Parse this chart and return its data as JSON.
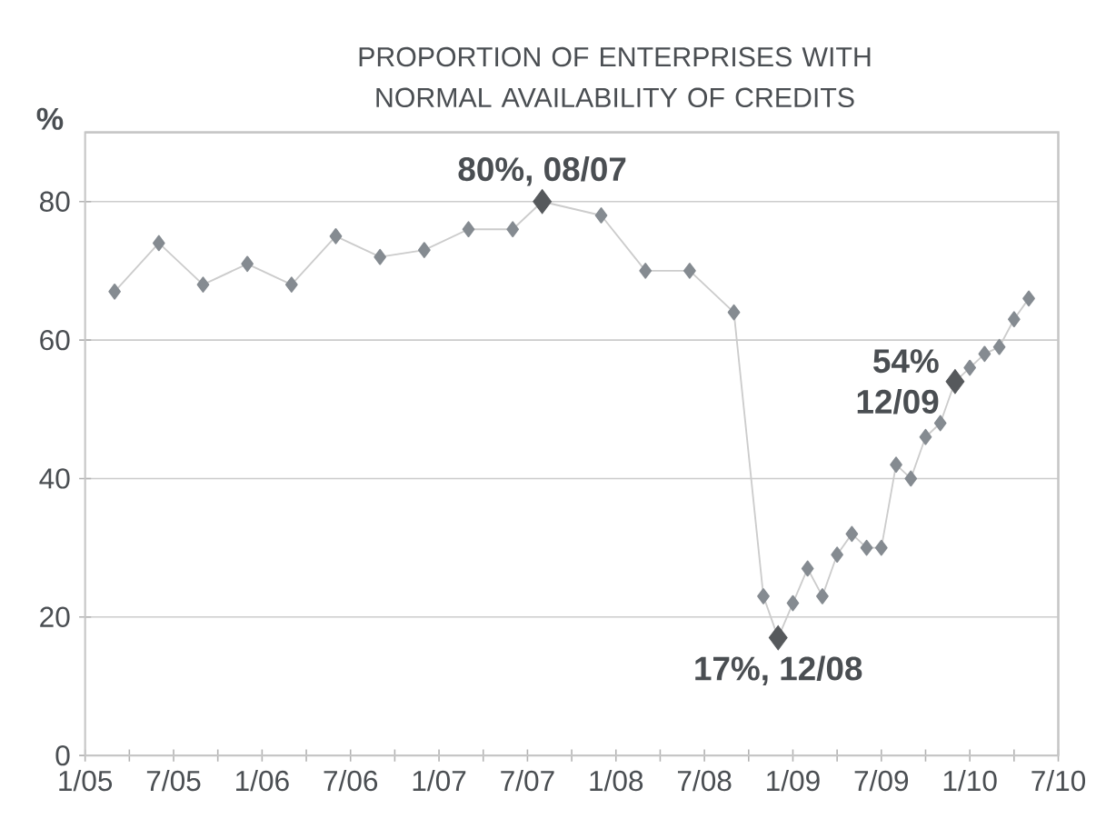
{
  "chart_data": {
    "type": "line",
    "title": "PROPORTION OF ENTERPRISES WITH NORMAL AVAILABILITY OF CREDITS",
    "ylabel": "%",
    "x": [
      "2005-03",
      "2005-06",
      "2005-09",
      "2005-12",
      "2006-03",
      "2006-06",
      "2006-09",
      "2006-12",
      "2007-03",
      "2007-06",
      "2007-08",
      "2007-12",
      "2008-03",
      "2008-06",
      "2008-09",
      "2008-11",
      "2008-12",
      "2009-01",
      "2009-02",
      "2009-03",
      "2009-04",
      "2009-05",
      "2009-06",
      "2009-07",
      "2009-08",
      "2009-09",
      "2009-10",
      "2009-11",
      "2009-12",
      "2010-01",
      "2010-02",
      "2010-03",
      "2010-04",
      "2010-05"
    ],
    "series": [
      {
        "color": "#858b91",
        "values": [
          67,
          74,
          68,
          71,
          68,
          75,
          72,
          73,
          76,
          76,
          80,
          78,
          70,
          70,
          64,
          23,
          17,
          22,
          27,
          23,
          29,
          32,
          30,
          30,
          42,
          40,
          46,
          48,
          54,
          56,
          58,
          59,
          63,
          66
        ]
      }
    ],
    "xlim": [
      "2005-01",
      "2010-07"
    ],
    "xticks": [
      {
        "value": "2005-01",
        "label": "1/05"
      },
      {
        "value": "2005-04",
        "label": null
      },
      {
        "value": "2005-07",
        "label": "7/05"
      },
      {
        "value": "2005-10",
        "label": null
      },
      {
        "value": "2006-01",
        "label": "1/06"
      },
      {
        "value": "2006-04",
        "label": null
      },
      {
        "value": "2006-07",
        "label": "7/06"
      },
      {
        "value": "2006-10",
        "label": null
      },
      {
        "value": "2007-01",
        "label": "1/07"
      },
      {
        "value": "2007-04",
        "label": null
      },
      {
        "value": "2007-07",
        "label": "7/07"
      },
      {
        "value": "2007-10",
        "label": null
      },
      {
        "value": "2008-01",
        "label": "1/08"
      },
      {
        "value": "2008-04",
        "label": null
      },
      {
        "value": "2008-07",
        "label": "7/08"
      },
      {
        "value": "2008-10",
        "label": null
      },
      {
        "value": "2009-01",
        "label": "1/09"
      },
      {
        "value": "2009-04",
        "label": null
      },
      {
        "value": "2009-07",
        "label": "7/09"
      },
      {
        "value": "2009-10",
        "label": null
      },
      {
        "value": "2010-01",
        "label": "1/10"
      },
      {
        "value": "2010-04",
        "label": null
      },
      {
        "value": "2010-07",
        "label": "7/10"
      }
    ],
    "ylim": [
      0,
      90
    ],
    "yticks": [
      0,
      20,
      40,
      60,
      80
    ],
    "grid": "y",
    "marker": "diamond",
    "line_style": "solid",
    "annotations": [
      {
        "text": "80%, 08/07",
        "x": "2007-08",
        "y": 80
      },
      {
        "text": "17%, 12/08",
        "x": "2008-12",
        "y": 17
      },
      {
        "text": "54% 12/09",
        "x": "2009-12",
        "y": 54
      }
    ]
  }
}
